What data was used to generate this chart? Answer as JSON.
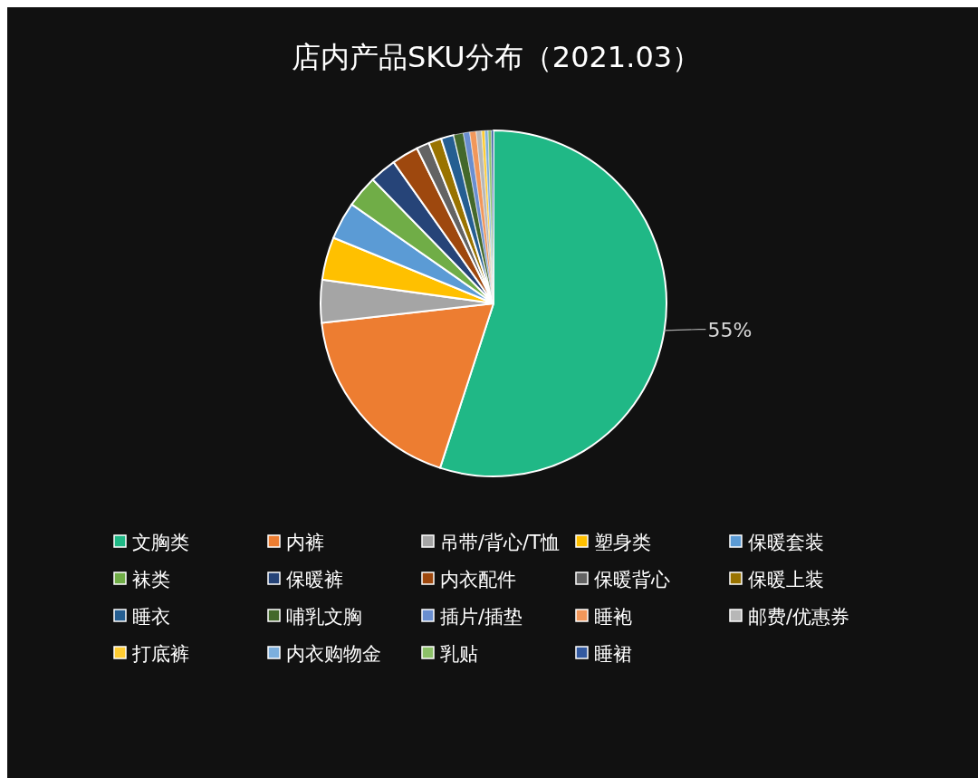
{
  "chart_data": {
    "type": "pie",
    "title": "店内产品SKU分布（2021.03）",
    "categories": [
      "文胸类",
      "内裤",
      "吊带/背心/T恤",
      "塑身类",
      "保暖套装",
      "袜类",
      "保暖裤",
      "内衣配件",
      "保暖背心",
      "保暖上装",
      "睡衣",
      "哺乳文胸",
      "插片/插垫",
      "睡袍",
      "邮费/优惠券",
      "打底裤",
      "内衣购物金",
      "乳贴",
      "睡裙"
    ],
    "values": [
      55,
      18.2,
      4,
      4,
      3.5,
      3,
      2.5,
      2.5,
      1.2,
      1.2,
      1.2,
      0.9,
      0.6,
      0.6,
      0.5,
      0.3,
      0.3,
      0.3,
      0.2
    ],
    "colors": [
      "#20b886",
      "#ed7d31",
      "#a5a5a5",
      "#ffc000",
      "#5b9bd5",
      "#70ad47",
      "#264478",
      "#9e480e",
      "#636363",
      "#997300",
      "#255e91",
      "#43682b",
      "#698ed0",
      "#f1975a",
      "#b7b7b7",
      "#ffcd33",
      "#7cafdd",
      "#8cc168",
      "#335aa1"
    ],
    "value_labels": [
      "55%",
      null,
      null,
      null,
      null,
      null,
      null,
      null,
      null,
      null,
      null,
      null,
      null,
      null,
      null,
      null,
      null,
      null,
      null
    ],
    "legend": "bottom"
  }
}
